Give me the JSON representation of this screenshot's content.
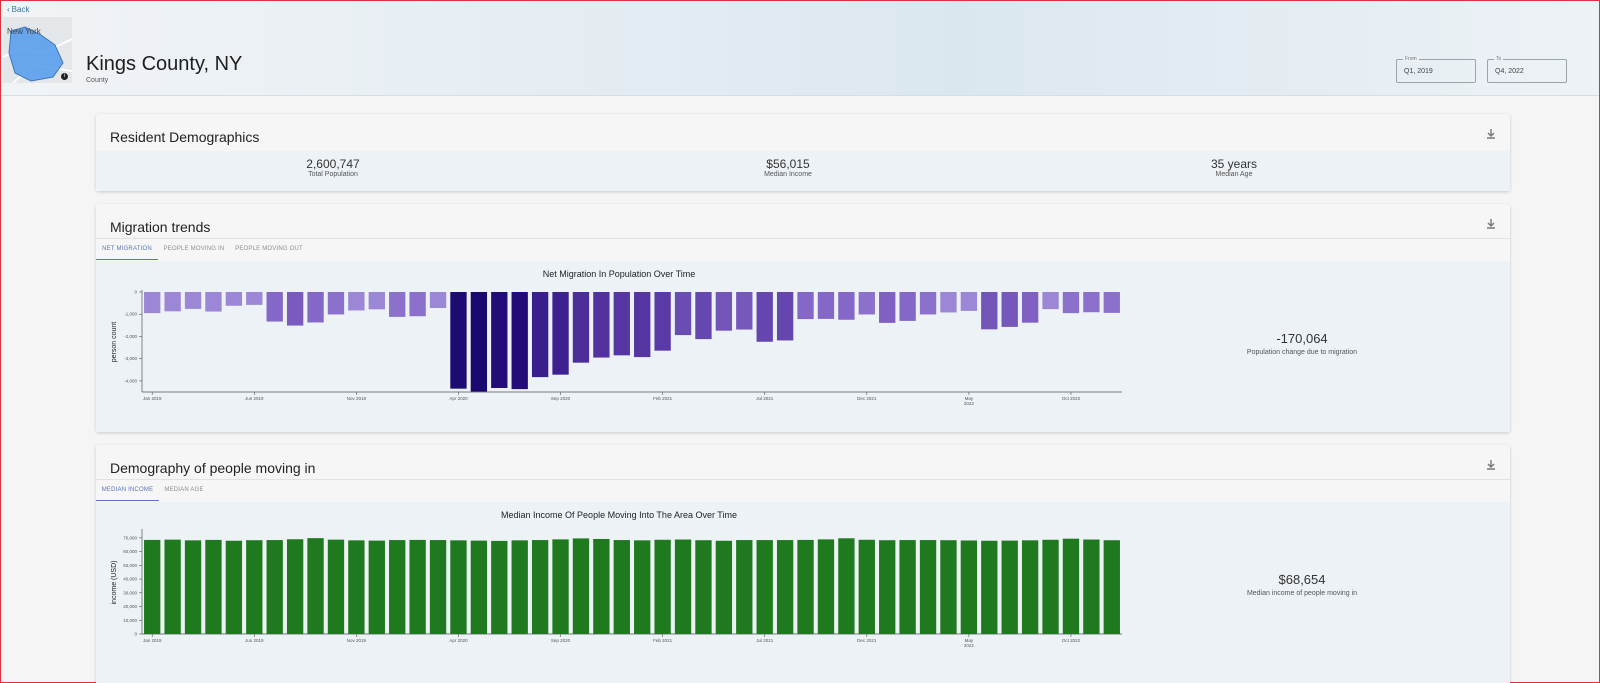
{
  "header": {
    "back_label": "Back",
    "map_label": "New York",
    "map_info": "i",
    "title": "Kings County, NY",
    "subtitle": "County",
    "from": {
      "label": "From",
      "value": "Q1, 2019"
    },
    "to": {
      "label": "To",
      "value": "Q4, 2022"
    }
  },
  "demographics": {
    "title": "Resident Demographics",
    "stats": [
      {
        "value": "2,600,747",
        "label": "Total Population"
      },
      {
        "value": "$56,015",
        "label": "Median Income"
      },
      {
        "value": "35 years",
        "label": "Median Age"
      }
    ]
  },
  "migration": {
    "title": "Migration trends",
    "tabs": [
      "NET MIGRATION",
      "PEOPLE MOVING IN",
      "PEOPLE MOVING OUT"
    ],
    "side_value": "-170,064",
    "side_label": "Population change due to migration"
  },
  "moving_in": {
    "title": "Demography of people moving in",
    "tabs": [
      "MEDIAN INCOME",
      "MEDIAN AGE"
    ],
    "side_value": "$68,654",
    "side_label": "Median income of people moving in"
  },
  "colors": {
    "accent": "#5a77b5",
    "income_bar": "#1f7a1f"
  },
  "chart_data": [
    {
      "type": "bar",
      "title": "Net Migration In Population Over Time",
      "ylabel": "person count",
      "ylim": [
        -4500,
        0
      ],
      "yticks": [
        0,
        -1000,
        -2000,
        -3000,
        -4000
      ],
      "ytick_labels": [
        "0",
        "-1,000",
        "-2,000",
        "-3,000",
        "-4,000"
      ],
      "xtick_labels": [
        {
          "i": 0,
          "label": "Jan 2019"
        },
        {
          "i": 5,
          "label": "Jun 2019"
        },
        {
          "i": 10,
          "label": "Nov 2019"
        },
        {
          "i": 15,
          "label": "Apr 2020"
        },
        {
          "i": 20,
          "label": "Sep 2020"
        },
        {
          "i": 25,
          "label": "Feb 2021"
        },
        {
          "i": 30,
          "label": "Jul 2021"
        },
        {
          "i": 35,
          "label": "Dec 2021"
        },
        {
          "i": 40,
          "label": "May 2022"
        },
        {
          "i": 45,
          "label": "Oct 2022"
        }
      ],
      "values": [
        -950,
        -870,
        -760,
        -880,
        -620,
        -580,
        -1330,
        -1510,
        -1370,
        -1010,
        -830,
        -780,
        -1120,
        -1090,
        -720,
        -4350,
        -4480,
        -4320,
        -4370,
        -3830,
        -3720,
        -3180,
        -2950,
        -2850,
        -2930,
        -2640,
        -1940,
        -2120,
        -1740,
        -1690,
        -2240,
        -2180,
        -1220,
        -1210,
        -1250,
        -1010,
        -1390,
        -1300,
        -1010,
        -920,
        -850,
        -1680,
        -1570,
        -1380,
        -770,
        -950,
        -910,
        -940
      ],
      "colors": [
        "#9c86d6",
        "#9c86d6",
        "#9c86d6",
        "#9c86d6",
        "#9c86d6",
        "#9c86d6",
        "#8567c7",
        "#7a5ac0",
        "#8567c7",
        "#8c71cc",
        "#9c86d6",
        "#9c86d6",
        "#8c71cc",
        "#8c71cc",
        "#9c86d6",
        "#1e0a73",
        "#1a0870",
        "#230c78",
        "#230c78",
        "#3a1f8c",
        "#3d218f",
        "#4c2d9a",
        "#5332a0",
        "#5636a3",
        "#5535a2",
        "#5a3ba6",
        "#6a4db3",
        "#6547af",
        "#7355b8",
        "#7657ba",
        "#6446ae",
        "#6446ae",
        "#8567c7",
        "#8567c7",
        "#8567c7",
        "#8c71cc",
        "#8060c3",
        "#8567c7",
        "#8c71cc",
        "#9c86d6",
        "#9c86d6",
        "#7355b8",
        "#7657ba",
        "#8060c3",
        "#9c86d6",
        "#8c71cc",
        "#8c71cc",
        "#8c71cc"
      ]
    },
    {
      "type": "bar",
      "title": "Median Income Of People Moving Into The Area Over Time",
      "ylabel": "income (USD)",
      "ylim": [
        0,
        75000
      ],
      "yticks": [
        0,
        10000,
        20000,
        30000,
        40000,
        50000,
        60000,
        70000
      ],
      "ytick_labels": [
        "0",
        "10,000",
        "20,000",
        "30,000",
        "40,000",
        "50,000",
        "60,000",
        "70,000"
      ],
      "xtick_labels": [
        {
          "i": 0,
          "label": "Jan 2019"
        },
        {
          "i": 5,
          "label": "Jun 2019"
        },
        {
          "i": 10,
          "label": "Nov 2019"
        },
        {
          "i": 15,
          "label": "Apr 2020"
        },
        {
          "i": 20,
          "label": "Sep 2020"
        },
        {
          "i": 25,
          "label": "Feb 2021"
        },
        {
          "i": 30,
          "label": "Jul 2021"
        },
        {
          "i": 35,
          "label": "Dec 2021"
        },
        {
          "i": 40,
          "label": "May 2022"
        },
        {
          "i": 45,
          "label": "Oct 2022"
        }
      ],
      "values": [
        68500,
        68700,
        68200,
        68500,
        67900,
        68300,
        68400,
        69000,
        69800,
        68700,
        68200,
        68000,
        68400,
        68500,
        68400,
        68200,
        68000,
        67800,
        68200,
        68400,
        68900,
        69600,
        69200,
        68400,
        68200,
        68600,
        68800,
        68300,
        67900,
        68400,
        68400,
        68400,
        68500,
        68900,
        69700,
        68600,
        68300,
        68400,
        68400,
        68300,
        68100,
        67900,
        68000,
        68200,
        68600,
        69400,
        68800,
        68300
      ]
    }
  ]
}
